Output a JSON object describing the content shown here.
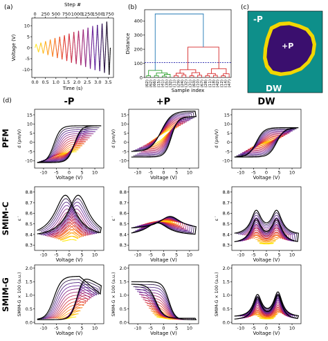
{
  "chart_data": [
    {
      "id": "a",
      "type": "line",
      "panel_label": "(a)",
      "xlabel": "Time (s)",
      "ylabel": "Voltage (V)",
      "top_xlabel": "Step #",
      "x_ticks": [
        "0.0",
        "0.5",
        "1.0",
        "1.5",
        "2.0",
        "2.5",
        "3.0",
        "3.5"
      ],
      "y_ticks": [
        "10",
        "5",
        "0",
        "-5",
        "-10"
      ],
      "top_ticks": [
        "0",
        "250",
        "500",
        "750",
        "1000",
        "1250",
        "1500",
        "1750"
      ],
      "xlim": [
        -0.15,
        3.75
      ],
      "ylim": [
        -13.5,
        13.5
      ],
      "toplim": [
        -75,
        1875
      ],
      "waveform": {
        "start_amplitude": 1.5,
        "end_amplitude": 12.5,
        "cycles": 16,
        "duration": 3.6
      },
      "colormap": [
        "#ffe900",
        "#ff8a10",
        "#e0322a",
        "#a81f6a",
        "#5a1d9e",
        "#000000"
      ]
    },
    {
      "id": "b",
      "type": "dendrogram",
      "panel_label": "(b)",
      "xlabel": "Sample index",
      "ylabel": "Distance",
      "y_ticks": [
        "0",
        "100",
        "200",
        "300",
        "400"
      ],
      "ylim": [
        0,
        480
      ],
      "threshold": 105,
      "leaf_labels": [
        "(62)",
        "(62)",
        "(66)",
        "(15)",
        "(41)",
        "(35)",
        "(32)",
        "(11)",
        "(29)",
        "(24)",
        "(32)",
        "(31)",
        "(63)",
        "(10)",
        "(67)",
        "(28)",
        "(11)",
        "(18)",
        "(42)",
        "(12)",
        "(14)",
        "(47)"
      ],
      "root_height": 450,
      "cluster_heights": {
        "green": 50,
        "red": 215
      }
    },
    {
      "id": "c",
      "type": "map",
      "panel_label": "(c)",
      "labels": [
        "-P",
        "+P",
        "DW"
      ],
      "colors": {
        "background": "#0e8f8a",
        "domain": "#3a0f6e",
        "wall": "#f2d600"
      }
    },
    {
      "id": "d",
      "type": "line",
      "panel_label": "(d)",
      "columns": [
        "-P",
        "+P",
        "DW"
      ],
      "rows": [
        {
          "name": "PFM",
          "ylabel": "d (pm/V)",
          "ylim": [
            -14,
            18
          ],
          "y_ticks": [
            "15",
            "10",
            "5",
            "0",
            "-5",
            "-10"
          ]
        },
        {
          "name": "SMIM-C",
          "ylabel": "ε ′",
          "ylim": [
            8.25,
            8.85
          ],
          "y_ticks": [
            "8.8",
            "8.7",
            "8.6",
            "8.5",
            "8.4",
            "8.3"
          ]
        },
        {
          "name": "SMIM-G",
          "ylabel": "SMIM-G × 100 (a.u.)",
          "ylim": [
            -0.05,
            2.12
          ],
          "y_ticks": [
            "2.0",
            "1.5",
            "1.0",
            "0.5",
            "0.0"
          ]
        }
      ],
      "xlabel": "Voltage (V)",
      "x_ticks": [
        "-10",
        "-5",
        "0",
        "5",
        "10"
      ],
      "xlim": [
        -13.5,
        13.5
      ],
      "loops_per_panel": 14
    }
  ]
}
